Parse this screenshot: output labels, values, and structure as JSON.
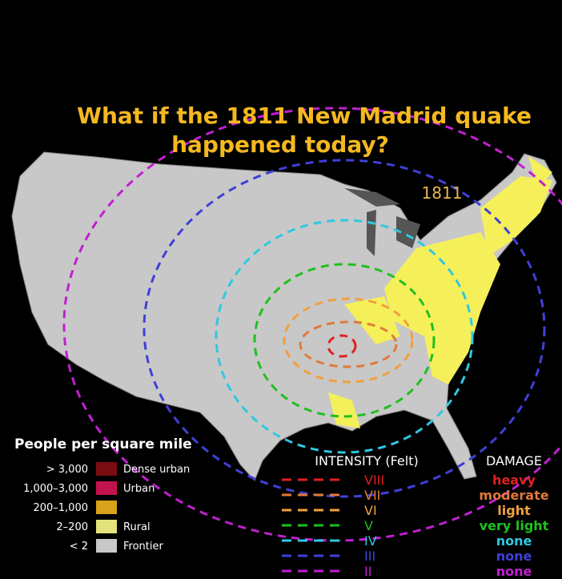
{
  "title": "What if the 1811 New Madrid quake happened today?",
  "year_label": "1811",
  "population_legend": {
    "title": "People per square mile",
    "items": [
      {
        "range": "> 3,000",
        "color": "#7a0c10",
        "label": "Dense urban"
      },
      {
        "range": "1,000–3,000",
        "color": "#c2134f",
        "label": "Urban"
      },
      {
        "range": "200–1,000",
        "color": "#d8a21a"
      },
      {
        "range": "2–200",
        "color": "#e3e27a",
        "label": "Rural"
      },
      {
        "range": "< 2",
        "color": "#c8c8c8",
        "label": "Frontier"
      }
    ]
  },
  "intensity_legend": {
    "header": "INTENSITY (Felt)",
    "damage_header": "DAMAGE",
    "items": [
      {
        "level": "VIII",
        "damage": "heavy",
        "color": "#e02020"
      },
      {
        "level": "VII",
        "damage": "moderate",
        "color": "#e07a3a"
      },
      {
        "level": "VI",
        "damage": "light",
        "color": "#f0a040"
      },
      {
        "level": "V",
        "damage": "very light",
        "color": "#20c020"
      },
      {
        "level": "IV",
        "damage": "none",
        "color": "#30c8e0"
      },
      {
        "level": "III",
        "damage": "none",
        "color": "#4040d8"
      },
      {
        "level": "II",
        "damage": "none",
        "color": "#c020d0"
      }
    ]
  }
}
